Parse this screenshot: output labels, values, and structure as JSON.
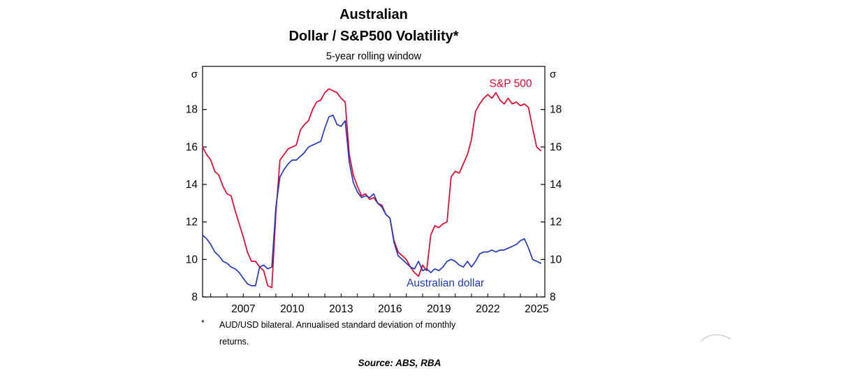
{
  "page": {
    "background": "#ffffff"
  },
  "header": {
    "title_line1": "Australian",
    "title_line2": "Dollar / S&P500 Volatility*",
    "subtitle": "5-year rolling window"
  },
  "footnote": {
    "marker": "*",
    "line1": "AUD/USD bilateral. Annualised standard deviation of monthly",
    "line2": "returns."
  },
  "source": "Source: ABS, RBA",
  "chart_data": {
    "type": "line",
    "title": "Australian Dollar / S&P500 Volatility*",
    "subtitle": "5-year rolling window",
    "ylabel_left": "σ",
    "ylabel_right": "σ",
    "xlim": [
      2004.5,
      2025.5
    ],
    "ylim": [
      8,
      20.3
    ],
    "yticks": [
      8,
      10,
      12,
      14,
      16,
      18
    ],
    "xticks": [
      2007,
      2010,
      2013,
      2016,
      2019,
      2022,
      2025
    ],
    "grid": false,
    "frame": true,
    "axis_color": "#000000",
    "x": [
      2004.5,
      2004.75,
      2005,
      2005.25,
      2005.5,
      2005.75,
      2006,
      2006.25,
      2006.5,
      2006.75,
      2007,
      2007.25,
      2007.5,
      2007.75,
      2008,
      2008.25,
      2008.5,
      2008.75,
      2009,
      2009.25,
      2009.5,
      2009.75,
      2010,
      2010.25,
      2010.5,
      2010.75,
      2011,
      2011.25,
      2011.5,
      2011.75,
      2012,
      2012.25,
      2012.5,
      2012.75,
      2013,
      2013.25,
      2013.5,
      2013.75,
      2014,
      2014.25,
      2014.5,
      2014.75,
      2015,
      2015.25,
      2015.5,
      2015.75,
      2016,
      2016.25,
      2016.5,
      2016.75,
      2017,
      2017.25,
      2017.5,
      2017.75,
      2018,
      2018.25,
      2018.5,
      2018.75,
      2019,
      2019.25,
      2019.5,
      2019.75,
      2020,
      2020.25,
      2020.5,
      2020.75,
      2021,
      2021.25,
      2021.5,
      2021.75,
      2022,
      2022.25,
      2022.5,
      2022.75,
      2023,
      2023.25,
      2023.5,
      2023.75,
      2024,
      2024.25,
      2024.5,
      2024.75,
      2025,
      2025.25
    ],
    "series": [
      {
        "name": "S&P 500",
        "color": "#e4032e",
        "values": [
          16.0,
          15.6,
          15.3,
          14.7,
          14.5,
          13.9,
          13.5,
          13.4,
          12.6,
          11.9,
          11.2,
          10.4,
          9.9,
          9.9,
          9.6,
          9.4,
          8.6,
          8.5,
          12.5,
          15.3,
          15.6,
          15.9,
          16.0,
          16.1,
          16.9,
          17.2,
          17.4,
          18.0,
          18.4,
          18.5,
          18.9,
          19.1,
          19.0,
          18.9,
          18.6,
          18.4,
          15.6,
          14.5,
          13.9,
          13.4,
          13.5,
          13.2,
          13.3,
          13.0,
          12.9,
          12.4,
          12.2,
          11.0,
          10.4,
          10.2,
          10.0,
          9.6,
          9.3,
          9.1,
          9.7,
          9.4,
          11.3,
          11.8,
          11.7,
          11.9,
          12.0,
          14.4,
          14.7,
          14.6,
          15.1,
          15.6,
          16.4,
          17.9,
          18.3,
          18.6,
          18.8,
          18.6,
          18.9,
          18.5,
          18.3,
          18.6,
          18.3,
          18.4,
          18.2,
          18.3,
          18.1,
          17.0,
          16.0,
          15.8
        ],
        "label": {
          "text": "S&P 500",
          "x": 2023.4,
          "y": 19.2
        }
      },
      {
        "name": "Australian dollar",
        "color": "#2239b8",
        "values": [
          11.3,
          11.1,
          10.8,
          10.4,
          10.2,
          9.9,
          9.8,
          9.6,
          9.5,
          9.3,
          9.0,
          8.7,
          8.6,
          8.6,
          9.6,
          9.7,
          9.5,
          9.6,
          12.8,
          14.4,
          14.8,
          15.1,
          15.3,
          15.3,
          15.5,
          15.7,
          16.0,
          16.1,
          16.2,
          16.3,
          17.0,
          17.6,
          17.7,
          17.2,
          17.1,
          17.4,
          15.2,
          14.1,
          13.6,
          13.3,
          13.4,
          13.3,
          13.5,
          13.0,
          12.8,
          12.4,
          12.2,
          10.9,
          10.2,
          10.0,
          9.8,
          9.6,
          9.5,
          9.9,
          9.4,
          9.5,
          9.3,
          9.5,
          9.4,
          9.6,
          9.9,
          10.0,
          9.9,
          9.7,
          9.6,
          9.9,
          9.6,
          9.9,
          10.3,
          10.4,
          10.4,
          10.5,
          10.4,
          10.5,
          10.5,
          10.6,
          10.7,
          10.8,
          11.0,
          11.1,
          10.6,
          10.0,
          9.9,
          9.8
        ],
        "label": {
          "text": "Australian dollar",
          "x": 2019.4,
          "y": 8.55
        }
      }
    ]
  }
}
